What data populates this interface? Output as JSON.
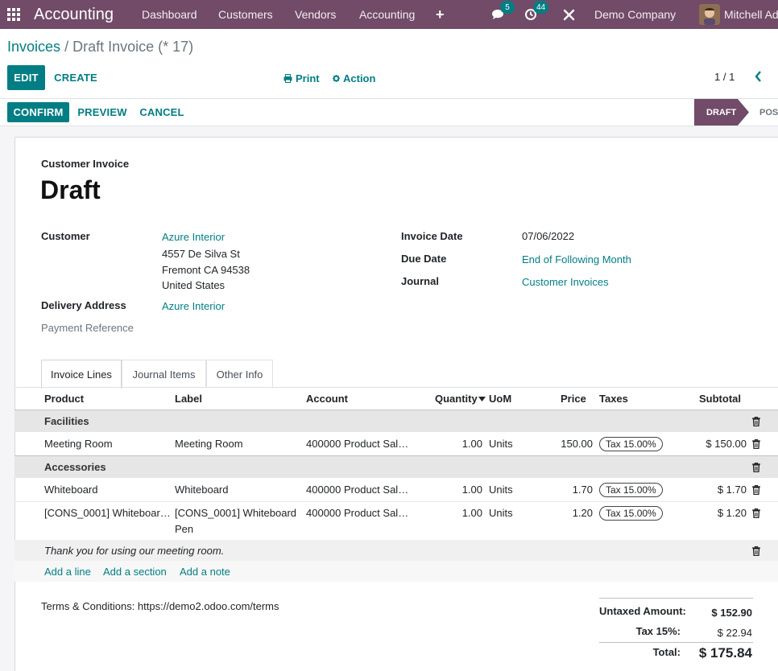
{
  "navbar": {
    "brand": "Accounting",
    "menus": [
      "Dashboard",
      "Customers",
      "Vendors",
      "Accounting"
    ],
    "plus": "+",
    "messages_count": "5",
    "activities_count": "44",
    "company": "Demo Company",
    "user": "Mitchell Admin",
    "color": "#714B67"
  },
  "breadcrumb": {
    "parent": "Invoices",
    "separator": "/",
    "current": "Draft Invoice (* 17)"
  },
  "control": {
    "edit": "EDIT",
    "create": "CREATE",
    "print": "Print",
    "action": "Action",
    "pager": "1 / 1"
  },
  "statusbar": {
    "confirm": "CONFIRM",
    "preview": "PREVIEW",
    "cancel": "CANCEL",
    "state_draft": "DRAFT",
    "state_posted": "POSTED"
  },
  "invoice": {
    "type_label": "Customer Invoice",
    "state_title": "Draft",
    "customer_label": "Customer",
    "customer_name": "Azure Interior",
    "address_line1": "4557 De Silva St",
    "address_line2": "Fremont CA 94538",
    "address_line3": "United States",
    "delivery_label": "Delivery Address",
    "delivery_value": "Azure Interior",
    "payment_ref_label": "Payment Reference",
    "invoice_date_label": "Invoice Date",
    "invoice_date": "07/06/2022",
    "due_date_label": "Due Date",
    "due_date": "End of Following Month",
    "journal_label": "Journal",
    "journal": "Customer Invoices"
  },
  "tabs": [
    "Invoice Lines",
    "Journal Items",
    "Other Info"
  ],
  "lines_table": {
    "headers": {
      "product": "Product",
      "label": "Label",
      "account": "Account",
      "quantity": "Quantity",
      "uom": "UoM",
      "price": "Price",
      "taxes": "Taxes",
      "subtotal": "Subtotal"
    },
    "section1": "Facilities",
    "row1": {
      "product": "Meeting Room",
      "label": "Meeting Room",
      "account": "400000 Product Sal…",
      "quantity": "1.00",
      "uom": "Units",
      "price": "150.00",
      "tax": "Tax 15.00%",
      "subtotal": "$ 150.00"
    },
    "section2": "Accessories",
    "row2": {
      "product": "Whiteboard",
      "label": "Whiteboard",
      "account": "400000 Product Sal…",
      "quantity": "1.00",
      "uom": "Units",
      "price": "1.70",
      "tax": "Tax 15.00%",
      "subtotal": "$ 1.70"
    },
    "row3": {
      "product": "[CONS_0001] Whiteboar…",
      "label_line1": "[CONS_0001] Whiteboard",
      "label_line2": "Pen",
      "account": "400000 Product Sal…",
      "quantity": "1.00",
      "uom": "Units",
      "price": "1.20",
      "tax": "Tax 15.00%",
      "subtotal": "$ 1.20"
    },
    "note": "Thank you for using our meeting room.",
    "add_line": "Add a line",
    "add_section": "Add a section",
    "add_note": "Add a note"
  },
  "footer": {
    "terms": "Terms & Conditions: https://demo2.odoo.com/terms",
    "untaxed_label": "Untaxed Amount:",
    "untaxed_value": "$ 152.90",
    "tax_label": "Tax 15%:",
    "tax_value": "$ 22.94",
    "total_label": "Total:",
    "total_value": "$ 175.84"
  },
  "colors": {
    "primary": "#017e84",
    "brand": "#714B67"
  },
  "icons": [
    "apps-grid-icon",
    "plus-icon",
    "chat-icon",
    "clock-icon",
    "tools-icon",
    "print-icon",
    "gear-icon",
    "chevron-left-icon",
    "trash-icon",
    "sort-desc-icon"
  ]
}
